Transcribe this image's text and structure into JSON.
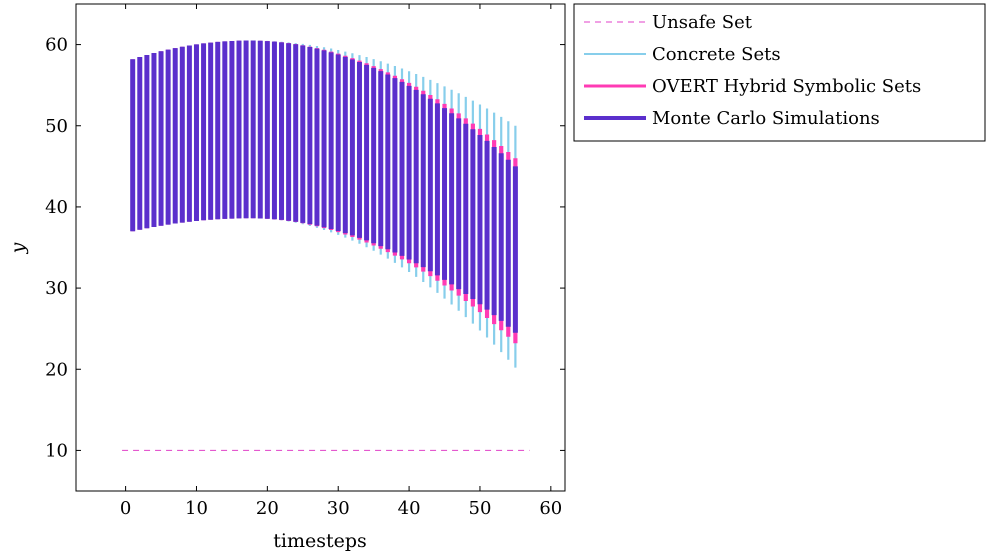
{
  "chart_data": {
    "type": "line",
    "title": "",
    "xlabel": "timesteps",
    "ylabel": "y",
    "xlim": [
      -7,
      62
    ],
    "ylim": [
      5,
      65
    ],
    "xticks": [
      0,
      10,
      20,
      30,
      40,
      50,
      60
    ],
    "yticks": [
      10,
      20,
      30,
      40,
      50,
      60
    ],
    "grid": false,
    "legend_position": "outside-top-right",
    "series": [
      {
        "name": "Unsafe Set",
        "style": "dashed",
        "color": "#e040c8",
        "x": [
          -0.5,
          57
        ],
        "y": [
          10,
          10
        ]
      },
      {
        "name": "Concrete Sets",
        "style": "interval",
        "color": "#87ceeb",
        "timesteps": [
          1,
          55
        ],
        "lower": {
          "t0": 37.0,
          "tpeak": 17.5,
          "peak": 38.6,
          "t_end_value": 20.2
        },
        "upper": {
          "t0": 58.2,
          "tpeak": 17.5,
          "peak": 60.5,
          "t_end_value": 50.0
        }
      },
      {
        "name": "OVERT Hybrid Symbolic Sets",
        "style": "interval",
        "color": "#ff3bb4",
        "timesteps": [
          1,
          55
        ],
        "lower": {
          "t0": 37.0,
          "tpeak": 17.5,
          "peak": 38.6,
          "t_end_value": 23.2
        },
        "upper": {
          "t0": 58.2,
          "tpeak": 17.5,
          "peak": 60.5,
          "t_end_value": 46.0
        }
      },
      {
        "name": "Monte Carlo Simulations",
        "style": "interval",
        "color": "#5b2fcc",
        "timesteps": [
          1,
          55
        ],
        "lower": {
          "t0": 37.0,
          "tpeak": 17.5,
          "peak": 38.6,
          "t_end_value": 24.5
        },
        "upper": {
          "t0": 58.2,
          "tpeak": 17.5,
          "peak": 60.5,
          "t_end_value": 45.0
        }
      }
    ]
  }
}
